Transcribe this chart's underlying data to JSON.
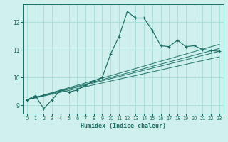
{
  "xlabel": "Humidex (Indice chaleur)",
  "bg_color": "#cff0ec",
  "grid_color": "#a8ddd8",
  "line_color": "#1a6e64",
  "xlim": [
    -0.5,
    23.5
  ],
  "ylim": [
    8.7,
    12.65
  ],
  "yticks": [
    9,
    10,
    11,
    12
  ],
  "xticks": [
    0,
    1,
    2,
    3,
    4,
    5,
    6,
    7,
    8,
    9,
    10,
    11,
    12,
    13,
    14,
    15,
    16,
    17,
    18,
    19,
    20,
    21,
    22,
    23
  ],
  "curve": [
    [
      0,
      9.2
    ],
    [
      1,
      9.35
    ],
    [
      2,
      8.88
    ],
    [
      3,
      9.2
    ],
    [
      4,
      9.55
    ],
    [
      5,
      9.48
    ],
    [
      6,
      9.55
    ],
    [
      7,
      9.72
    ],
    [
      8,
      9.88
    ],
    [
      9,
      10.0
    ],
    [
      10,
      10.85
    ],
    [
      11,
      11.48
    ],
    [
      12,
      12.38
    ],
    [
      13,
      12.15
    ],
    [
      14,
      12.15
    ],
    [
      15,
      11.7
    ],
    [
      16,
      11.15
    ],
    [
      17,
      11.12
    ],
    [
      18,
      11.35
    ],
    [
      19,
      11.12
    ],
    [
      20,
      11.15
    ],
    [
      21,
      11.02
    ],
    [
      22,
      10.98
    ],
    [
      23,
      10.95
    ]
  ],
  "straight_lines": [
    [
      [
        0,
        9.2
      ],
      [
        23,
        10.75
      ]
    ],
    [
      [
        0,
        9.2
      ],
      [
        23,
        10.95
      ]
    ],
    [
      [
        0,
        9.2
      ],
      [
        23,
        11.05
      ]
    ],
    [
      [
        0,
        9.2
      ],
      [
        23,
        11.2
      ]
    ]
  ]
}
